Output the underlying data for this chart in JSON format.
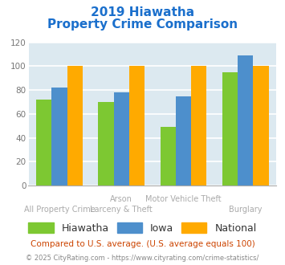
{
  "title_line1": "2019 Hiawatha",
  "title_line2": "Property Crime Comparison",
  "title_color": "#1a6fcc",
  "cat_labels_line1": [
    "All Property Crime",
    "Arson",
    "Motor Vehicle Theft",
    "Burglary"
  ],
  "cat_labels_line2": [
    "",
    "Larceny & Theft",
    "",
    ""
  ],
  "series": {
    "Hiawatha": [
      72,
      70,
      49,
      95
    ],
    "Iowa": [
      82,
      78,
      75,
      109
    ],
    "National": [
      100,
      100,
      100,
      100
    ]
  },
  "colors": {
    "Hiawatha": "#7dc832",
    "Iowa": "#4d8fcc",
    "National": "#ffaa00"
  },
  "ylim": [
    0,
    120
  ],
  "yticks": [
    0,
    20,
    40,
    60,
    80,
    100,
    120
  ],
  "background_color": "#dce9f0",
  "grid_color": "#ffffff",
  "footer_text": "Compared to U.S. average. (U.S. average equals 100)",
  "footer_color": "#cc4400",
  "copyright_text": "© 2025 CityRating.com - https://www.cityrating.com/crime-statistics/",
  "copyright_color": "#888888",
  "bar_width": 0.25,
  "label_color": "#aaaaaa"
}
